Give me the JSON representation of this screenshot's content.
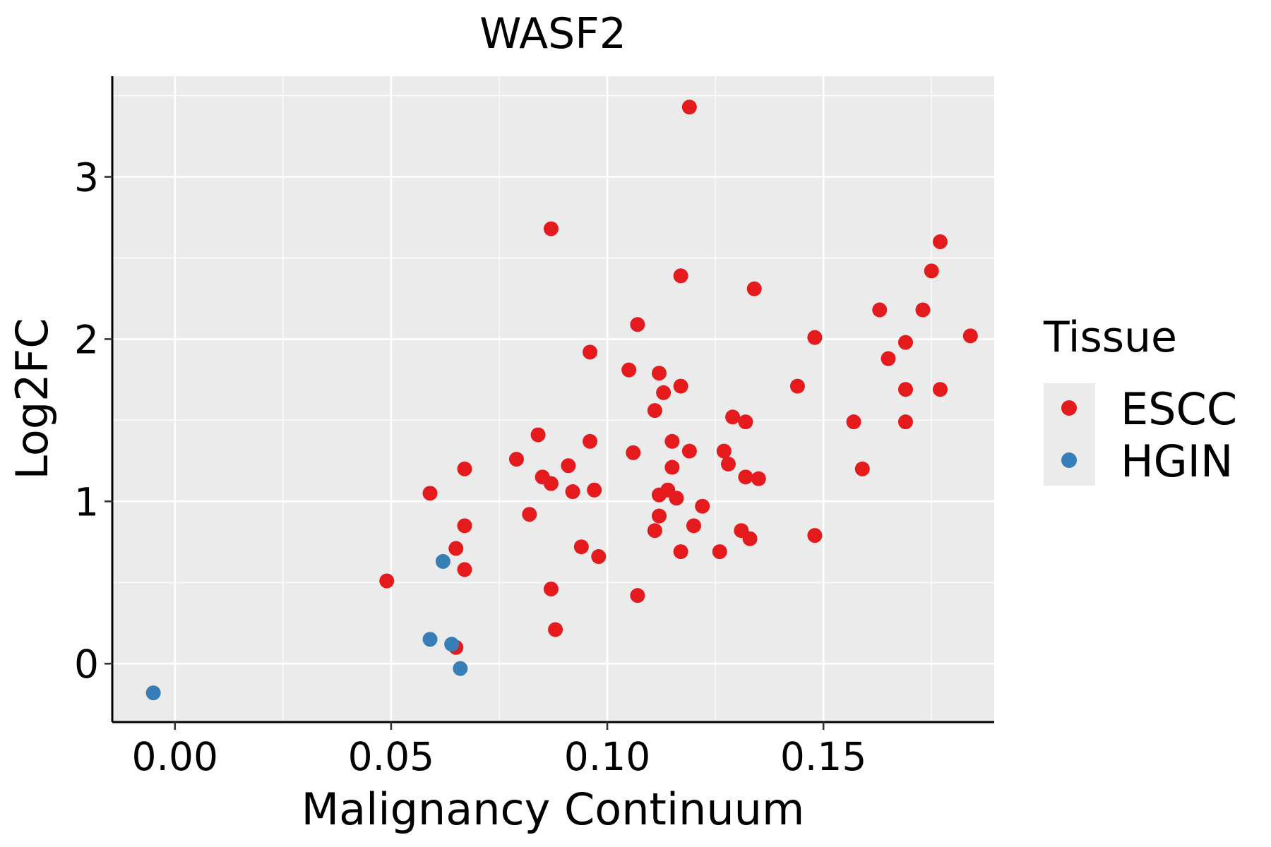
{
  "chart_data": {
    "type": "scatter",
    "title": "WASF2",
    "xlabel": "Malignancy Continuum",
    "ylabel": "Log2FC",
    "xlim": [
      -0.0145,
      0.1895
    ],
    "ylim": [
      -0.36,
      3.62
    ],
    "x_ticks": [
      0.0,
      0.05,
      0.1,
      0.15
    ],
    "x_tick_labels": [
      "0.00",
      "0.05",
      "0.10",
      "0.15"
    ],
    "y_ticks": [
      0,
      1,
      2,
      3
    ],
    "y_tick_labels": [
      "0",
      "1",
      "2",
      "3"
    ],
    "grid": true,
    "legend": {
      "title": "Tissue",
      "position": "right",
      "entries": [
        {
          "name": "ESCC",
          "color": "#E41A1C"
        },
        {
          "name": "HGIN",
          "color": "#377EB8"
        }
      ]
    },
    "colors": {
      "panel_background": "#EBEBEB",
      "grid": "#FFFFFF",
      "axis_line": "#000000"
    },
    "series": [
      {
        "name": "ESCC",
        "color": "#E41A1C",
        "points": [
          [
            0.119,
            3.43
          ],
          [
            0.087,
            2.68
          ],
          [
            0.177,
            2.6
          ],
          [
            0.175,
            2.42
          ],
          [
            0.117,
            2.39
          ],
          [
            0.134,
            2.31
          ],
          [
            0.163,
            2.18
          ],
          [
            0.173,
            2.18
          ],
          [
            0.107,
            2.09
          ],
          [
            0.148,
            2.01
          ],
          [
            0.184,
            2.02
          ],
          [
            0.169,
            1.98
          ],
          [
            0.096,
            1.92
          ],
          [
            0.165,
            1.88
          ],
          [
            0.105,
            1.81
          ],
          [
            0.112,
            1.79
          ],
          [
            0.117,
            1.71
          ],
          [
            0.144,
            1.71
          ],
          [
            0.113,
            1.67
          ],
          [
            0.169,
            1.69
          ],
          [
            0.177,
            1.69
          ],
          [
            0.111,
            1.56
          ],
          [
            0.129,
            1.52
          ],
          [
            0.132,
            1.49
          ],
          [
            0.157,
            1.49
          ],
          [
            0.169,
            1.49
          ],
          [
            0.084,
            1.41
          ],
          [
            0.096,
            1.37
          ],
          [
            0.115,
            1.37
          ],
          [
            0.106,
            1.3
          ],
          [
            0.119,
            1.31
          ],
          [
            0.127,
            1.31
          ],
          [
            0.079,
            1.26
          ],
          [
            0.091,
            1.22
          ],
          [
            0.128,
            1.23
          ],
          [
            0.067,
            1.2
          ],
          [
            0.115,
            1.21
          ],
          [
            0.159,
            1.2
          ],
          [
            0.085,
            1.15
          ],
          [
            0.132,
            1.15
          ],
          [
            0.135,
            1.14
          ],
          [
            0.087,
            1.11
          ],
          [
            0.059,
            1.05
          ],
          [
            0.092,
            1.06
          ],
          [
            0.097,
            1.07
          ],
          [
            0.114,
            1.07
          ],
          [
            0.112,
            1.04
          ],
          [
            0.116,
            1.02
          ],
          [
            0.122,
            0.97
          ],
          [
            0.082,
            0.92
          ],
          [
            0.112,
            0.91
          ],
          [
            0.067,
            0.85
          ],
          [
            0.12,
            0.85
          ],
          [
            0.111,
            0.82
          ],
          [
            0.131,
            0.82
          ],
          [
            0.148,
            0.79
          ],
          [
            0.133,
            0.77
          ],
          [
            0.065,
            0.71
          ],
          [
            0.094,
            0.72
          ],
          [
            0.117,
            0.69
          ],
          [
            0.126,
            0.69
          ],
          [
            0.098,
            0.66
          ],
          [
            0.067,
            0.58
          ],
          [
            0.049,
            0.51
          ],
          [
            0.087,
            0.46
          ],
          [
            0.107,
            0.42
          ],
          [
            0.088,
            0.21
          ],
          [
            0.065,
            0.1
          ]
        ]
      },
      {
        "name": "HGIN",
        "color": "#377EB8",
        "points": [
          [
            0.062,
            0.63
          ],
          [
            0.059,
            0.15
          ],
          [
            0.064,
            0.12
          ],
          [
            0.066,
            -0.03
          ],
          [
            -0.005,
            -0.18
          ]
        ]
      }
    ]
  }
}
